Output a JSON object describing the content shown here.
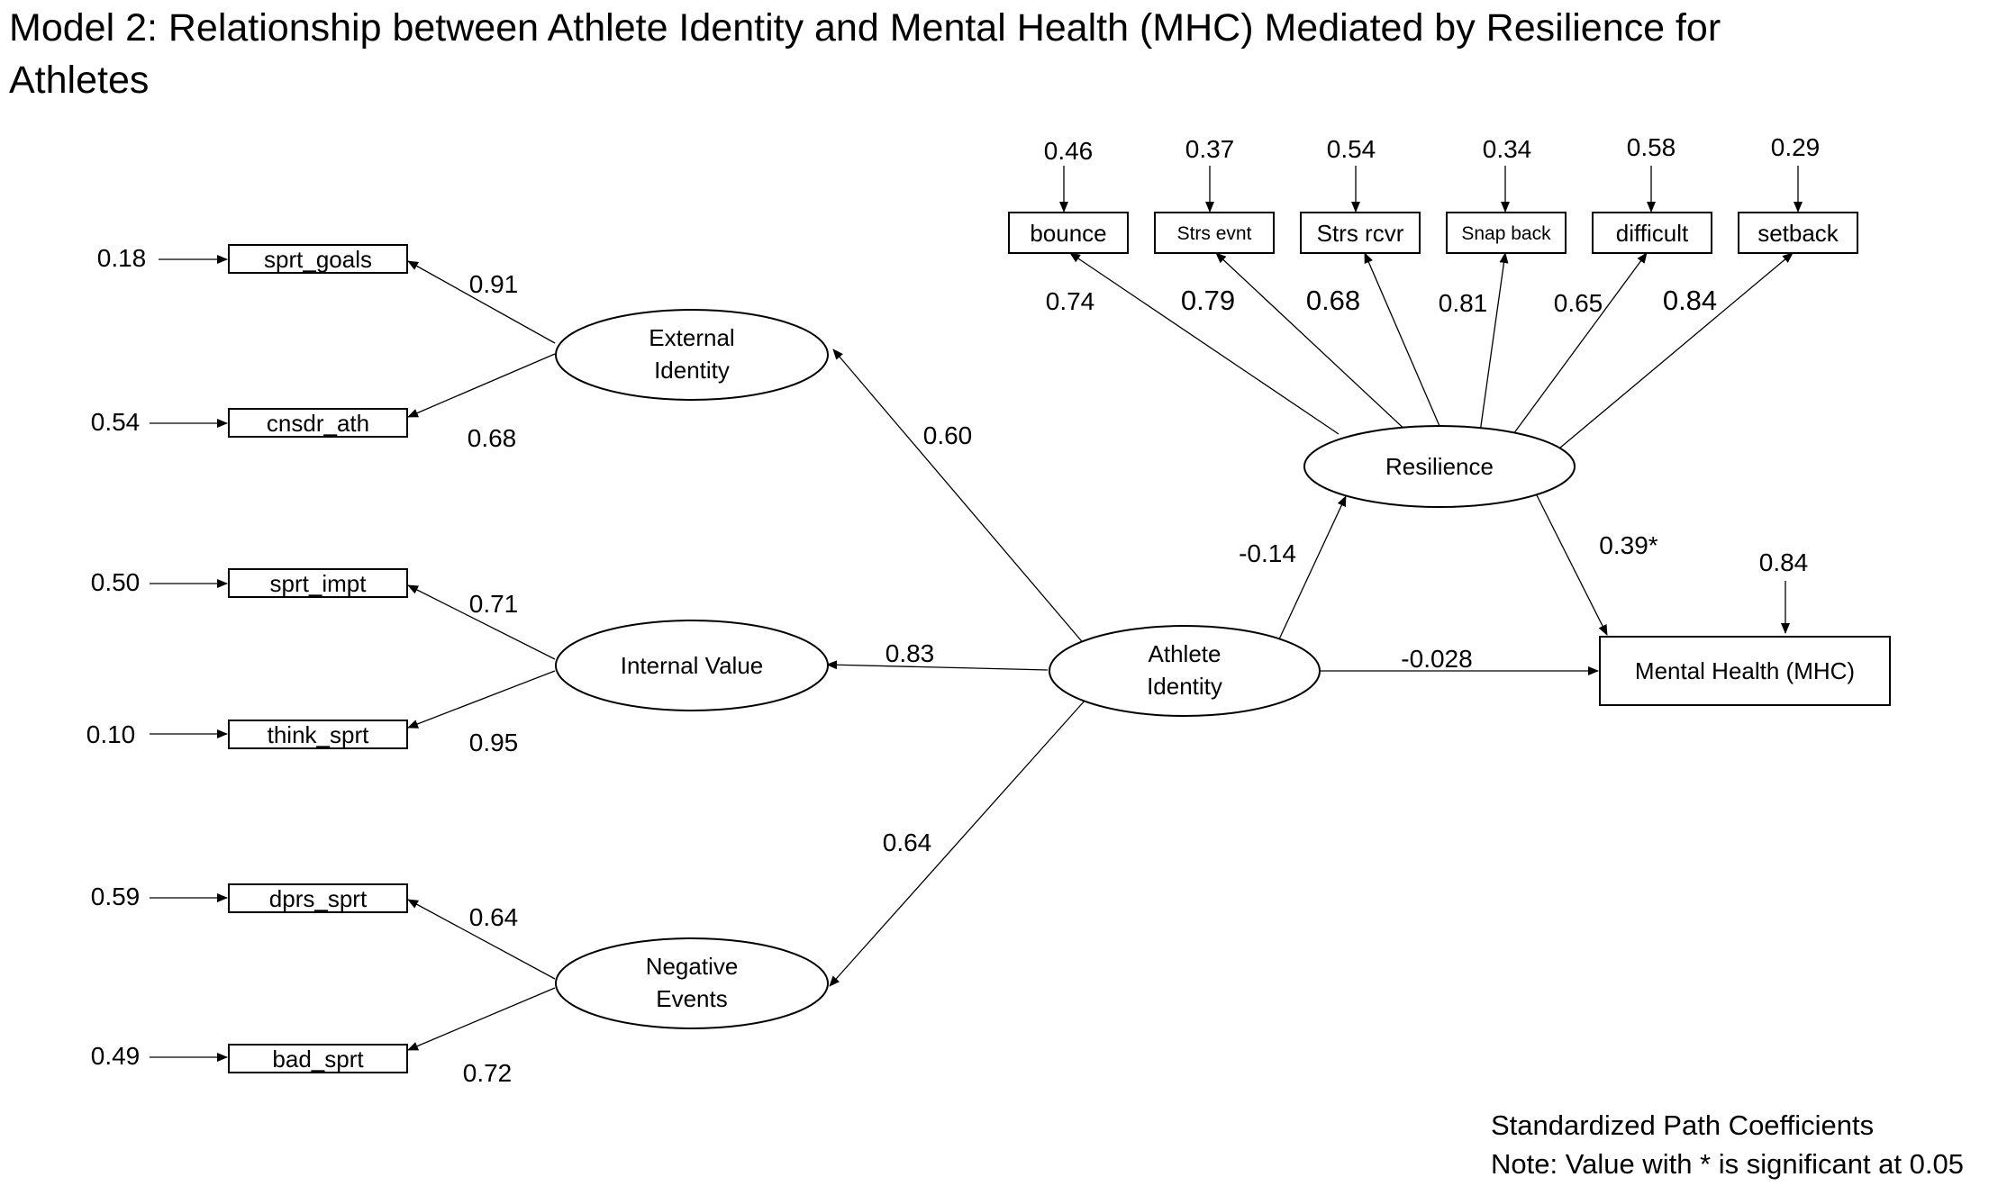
{
  "title_line1": "Model 2: Relationship between Athlete Identity and Mental Health (MHC) Mediated by Resilience for",
  "title_line2": "Athletes",
  "notes": {
    "line1": "Standardized Path Coefficients",
    "line2": "Note: Value with * is significant at 0.05"
  },
  "latents": {
    "athlete_identity": [
      "Athlete",
      "Identity"
    ],
    "external_identity": [
      "External",
      "Identity"
    ],
    "internal_value": [
      "Internal Value"
    ],
    "negative_events": [
      "Negative",
      "Events"
    ],
    "resilience": [
      "Resilience"
    ]
  },
  "outcome": {
    "label": "Mental Health (MHC)",
    "error": "0.84"
  },
  "indicators": {
    "sprt_goals": {
      "label": "sprt_goals",
      "error": "0.18",
      "loading": "0.91"
    },
    "cnsdr_ath": {
      "label": "cnsdr_ath",
      "error": "0.54",
      "loading": "0.68"
    },
    "sprt_impt": {
      "label": "sprt_impt",
      "error": "0.50",
      "loading": "0.71"
    },
    "think_sprt": {
      "label": "think_sprt",
      "error": "0.10",
      "loading": "0.95"
    },
    "dprs_sprt": {
      "label": "dprs_sprt",
      "error": "0.59",
      "loading": "0.64"
    },
    "bad_sprt": {
      "label": "bad_sprt",
      "error": "0.49",
      "loading": "0.72"
    },
    "bounce": {
      "label": "bounce",
      "error": "0.46",
      "loading": "0.74"
    },
    "strs_evnt": {
      "label": "Strs evnt",
      "error": "0.37",
      "loading": "0.79"
    },
    "strs_rcvr": {
      "label": "Strs rcvr",
      "error": "0.54",
      "loading": "0.68"
    },
    "snap_back": {
      "label": "Snap back",
      "error": "0.34",
      "loading": "0.81"
    },
    "difficult": {
      "label": "difficult",
      "error": "0.58",
      "loading": "0.65"
    },
    "setback": {
      "label": "setback",
      "error": "0.29",
      "loading": "0.84"
    }
  },
  "paths": {
    "ai_to_external": "0.60",
    "ai_to_internal": "0.83",
    "ai_to_negative": "0.64",
    "ai_to_resilience": "-0.14",
    "ai_to_mhc": "-0.028",
    "resilience_to_mhc": "0.39*"
  }
}
